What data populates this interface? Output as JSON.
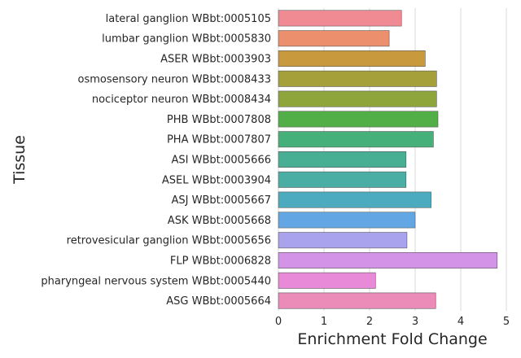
{
  "chart_data": {
    "type": "bar",
    "orientation": "horizontal",
    "xlabel": "Enrichment Fold Change",
    "ylabel": "Tissue",
    "xlim": [
      0,
      5
    ],
    "xticks": [
      "0",
      "1",
      "2",
      "3",
      "4",
      "5"
    ],
    "grid": "vertical",
    "categories": [
      "lateral ganglion WBbt:0005105",
      "lumbar ganglion WBbt:0005830",
      "ASER WBbt:0003903",
      "osmosensory neuron WBbt:0008433",
      "nociceptor neuron WBbt:0008434",
      "PHB WBbt:0007808",
      "PHA WBbt:0007807",
      "ASI WBbt:0005666",
      "ASEL WBbt:0003904",
      "ASJ WBbt:0005667",
      "ASK WBbt:0005668",
      "retrovesicular ganglion WBbt:0005656",
      "FLP WBbt:0006828",
      "pharyngeal nervous system WBbt:0005440",
      "ASG WBbt:0005664"
    ],
    "values": [
      2.7,
      2.43,
      3.22,
      3.47,
      3.47,
      3.5,
      3.4,
      2.8,
      2.8,
      3.35,
      3.0,
      2.82,
      4.8,
      2.13,
      3.45
    ],
    "colors": [
      "#f08b94",
      "#eb8f6c",
      "#c99a3d",
      "#a5a03a",
      "#8ea53c",
      "#52ae47",
      "#46b07a",
      "#48af95",
      "#4aaea4",
      "#4cabbe",
      "#62a7e3",
      "#a9a3ed",
      "#d394e8",
      "#e98ad8",
      "#ea8bb8"
    ]
  }
}
